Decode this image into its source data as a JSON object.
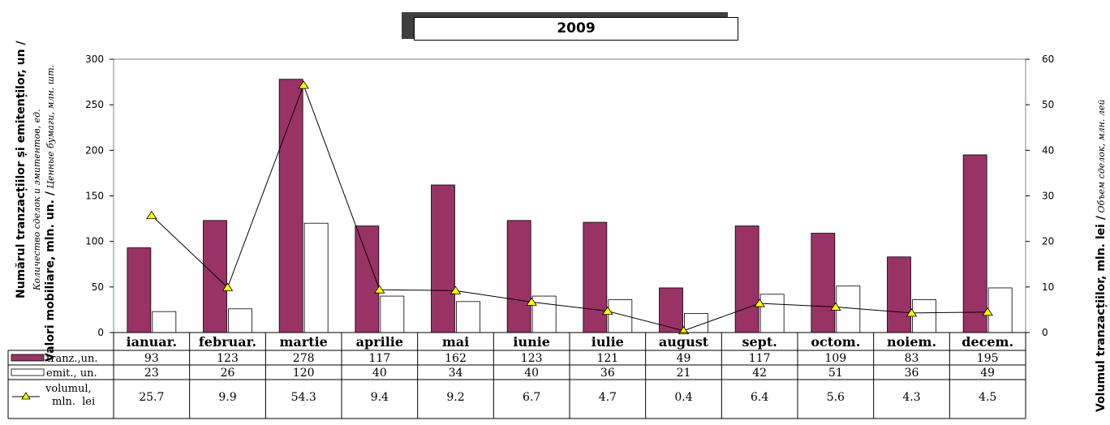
{
  "chart_data": {
    "type": "bar",
    "title": "2009",
    "categories": [
      "ianuar.",
      "februar.",
      "martie",
      "aprilie",
      "mai",
      "iunie",
      "iulie",
      "august",
      "sept.",
      "octom.",
      "noiem.",
      "decem."
    ],
    "series": [
      {
        "name": "tranz.,un.",
        "kind": "bar",
        "axis": "left",
        "color": "#993366",
        "values": [
          93,
          123,
          278,
          117,
          162,
          123,
          121,
          49,
          117,
          109,
          83,
          195
        ]
      },
      {
        "name": "emit., un.",
        "kind": "bar",
        "axis": "left",
        "color": "#ffffff",
        "values": [
          23,
          26,
          120,
          40,
          34,
          40,
          36,
          21,
          42,
          51,
          36,
          49
        ]
      },
      {
        "name": "volumul, mln. lei",
        "kind": "line",
        "axis": "right",
        "marker": "triangle",
        "marker_color": "#ffff00",
        "values": [
          25.7,
          9.9,
          54.3,
          9.4,
          9.2,
          6.7,
          4.7,
          0.4,
          6.4,
          5.6,
          4.3,
          4.5
        ]
      }
    ],
    "y_left": {
      "lim": [
        0,
        300
      ],
      "ticks": [
        0,
        50,
        100,
        150,
        200,
        250,
        300
      ]
    },
    "y_right": {
      "lim": [
        0,
        60
      ],
      "ticks": [
        0,
        10,
        20,
        30,
        40,
        50,
        60
      ]
    },
    "ylabel_left": {
      "line1": "Numărul tranzacțiilor și emitenților, un /",
      "line2": "Количество сделок и эмитентов, ед.",
      "line3_bold": "Valori mobiliare, mln. un. /",
      "line3_italic": " Ценные бумаги, млн. шт."
    },
    "ylabel_right": {
      "bold": "Volumul tranzacțiilor, mln. lei /",
      "italic": " Объем сделок, млн. лей"
    },
    "table": true
  }
}
